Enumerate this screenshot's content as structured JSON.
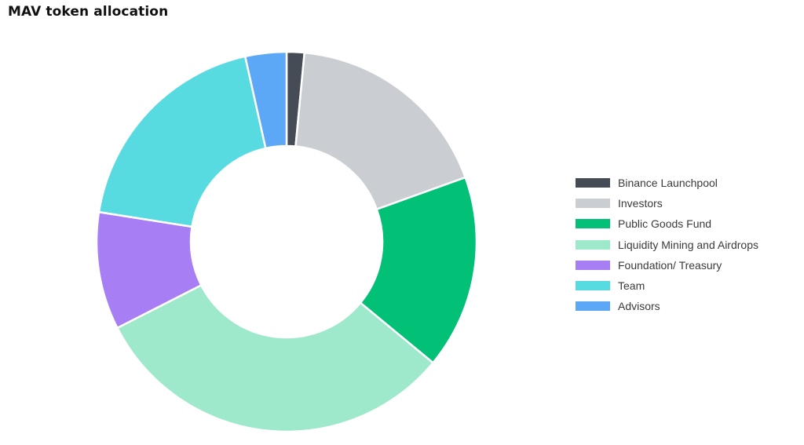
{
  "chart_data": {
    "type": "pie",
    "title": "MAV token allocation",
    "donut": true,
    "legend_position": "right",
    "categories": [
      "Binance Launchpool",
      "Investors",
      "Public Goods Fund",
      "Liquidity Mining and Airdrops",
      "Foundation/ Treasury",
      "Team",
      "Advisors"
    ],
    "values": [
      1.5,
      18.0,
      16.5,
      31.5,
      10.0,
      19.0,
      3.5
    ],
    "colors": [
      "#464c56",
      "#caced3",
      "#02c076",
      "#9ee8cb",
      "#a87ef5",
      "#58dbe0",
      "#5ca8f6"
    ]
  }
}
